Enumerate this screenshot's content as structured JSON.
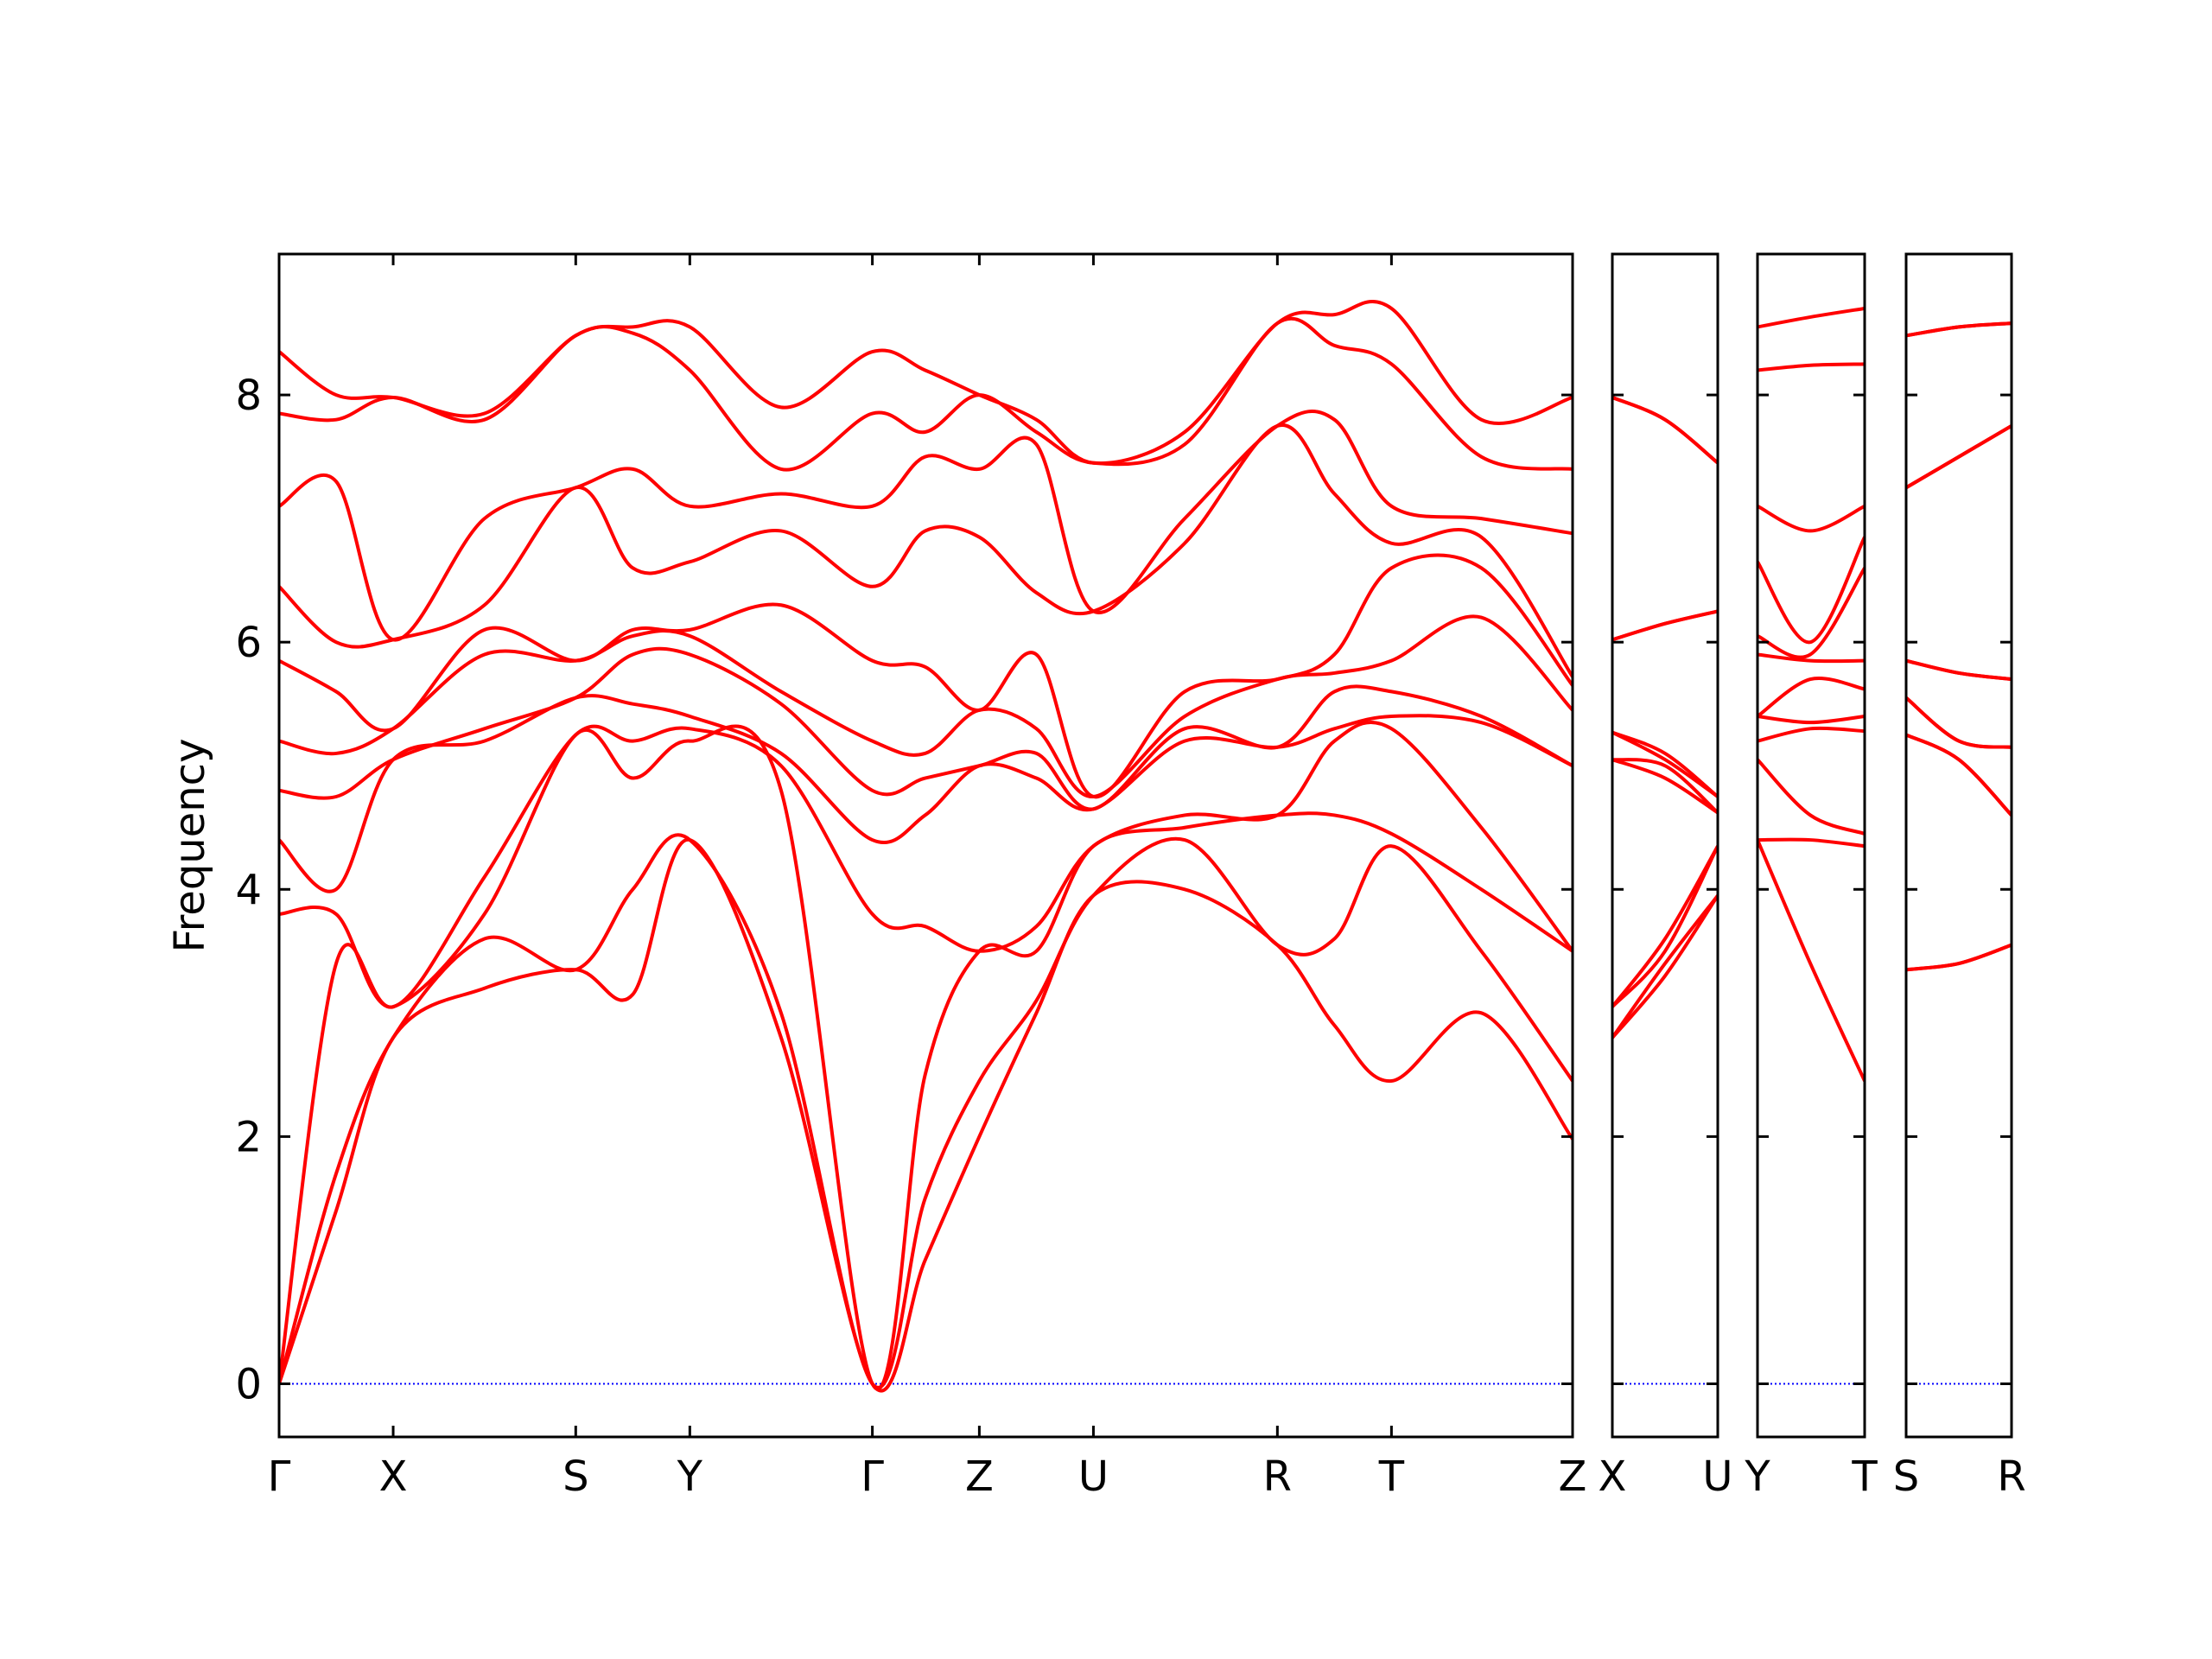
{
  "chart_data": [
    {
      "type": "line",
      "ylabel": "Frequency",
      "show_ytick_labels": true,
      "x": [
        0,
        0.4,
        0.8,
        1.44,
        2.08,
        2.48,
        2.88,
        3.52,
        4.16,
        4.53,
        4.91,
        5.31,
        5.71,
        6.35,
        7.0,
        7.4,
        7.8,
        8.43,
        9.07
      ],
      "xlim": [
        0,
        9.07
      ],
      "xticks": [
        {
          "value": 0,
          "label": "Γ"
        },
        {
          "value": 0.8,
          "label": "X"
        },
        {
          "value": 2.08,
          "label": "S"
        },
        {
          "value": 2.88,
          "label": "Y"
        },
        {
          "value": 4.16,
          "label": "Γ"
        },
        {
          "value": 4.91,
          "label": "Z"
        },
        {
          "value": 5.71,
          "label": "U"
        },
        {
          "value": 7.0,
          "label": "R"
        },
        {
          "value": 7.8,
          "label": "T"
        },
        {
          "value": 9.07,
          "label": "Z"
        }
      ],
      "ylim": [
        -0.43,
        9.14
      ],
      "yticks": [
        0,
        2,
        4,
        6,
        8
      ],
      "hline": 0,
      "hline_color": "#0000ff",
      "series": [
        {
          "color": "#ff0000",
          "values": [
            0,
            1.4,
            2.8,
            3.2,
            3.35,
            3.15,
            4.4,
            2.8,
            0,
            1.0,
            2.0,
            3.0,
            3.95,
            4.0,
            3.55,
            2.9,
            2.45,
            3.0,
            1.98
          ]
        },
        {
          "color": "#ff0000",
          "values": [
            0,
            1.7,
            2.8,
            3.6,
            3.35,
            4.0,
            4.4,
            3.0,
            0,
            1.5,
            2.45,
            3.1,
            3.95,
            4.4,
            3.55,
            3.6,
            4.35,
            3.5,
            2.45
          ]
        },
        {
          "color": "#ff0000",
          "values": [
            0,
            3.4,
            3.05,
            3.8,
            5.25,
            4.9,
            5.2,
            4.8,
            0,
            2.5,
            3.5,
            3.5,
            4.35,
            4.5,
            4.6,
            4.6,
            4.45,
            4.0,
            3.5
          ]
        },
        {
          "color": "#ff0000",
          "values": [
            3.8,
            3.8,
            3.05,
            4.1,
            5.25,
            5.2,
            5.3,
            5.0,
            3.8,
            3.7,
            3.5,
            3.7,
            4.35,
            4.6,
            4.6,
            5.2,
            5.3,
            4.5,
            3.5
          ]
        },
        {
          "color": "#ff0000",
          "values": [
            4.4,
            4.0,
            5.05,
            5.2,
            5.55,
            5.5,
            5.4,
            5.1,
            4.4,
            4.6,
            5.0,
            4.9,
            4.65,
            5.2,
            5.15,
            5.3,
            5.4,
            5.35,
            5.0
          ]
        },
        {
          "color": "#ff0000",
          "values": [
            4.8,
            4.75,
            5.05,
            5.3,
            5.55,
            5.9,
            5.9,
            5.5,
            4.8,
            4.9,
            5.0,
            5.1,
            4.65,
            5.3,
            5.15,
            5.6,
            5.6,
            5.4,
            5.0
          ]
        },
        {
          "color": "#ff0000",
          "values": [
            5.2,
            5.1,
            5.3,
            5.9,
            5.85,
            6.05,
            6.05,
            5.6,
            5.2,
            5.1,
            5.45,
            5.3,
            4.75,
            5.4,
            5.7,
            5.75,
            5.85,
            6.2,
            5.45
          ]
        },
        {
          "color": "#ff0000",
          "values": [
            5.85,
            5.6,
            5.3,
            6.1,
            5.85,
            6.1,
            6.1,
            6.3,
            5.85,
            5.8,
            5.45,
            5.9,
            4.75,
            5.6,
            5.7,
            5.9,
            6.6,
            6.6,
            5.65
          ]
        },
        {
          "color": "#ff0000",
          "values": [
            6.45,
            6.0,
            6.02,
            6.3,
            7.25,
            6.6,
            6.65,
            6.9,
            6.45,
            6.9,
            6.85,
            6.4,
            6.25,
            6.8,
            7.75,
            7.2,
            6.8,
            6.85,
            5.72
          ]
        },
        {
          "color": "#ff0000",
          "values": [
            7.1,
            7.3,
            6.02,
            7.0,
            7.25,
            7.4,
            7.1,
            7.2,
            7.1,
            7.5,
            7.4,
            7.6,
            6.25,
            7.0,
            7.75,
            7.8,
            7.1,
            7.0,
            6.88
          ]
        },
        {
          "color": "#ff0000",
          "values": [
            7.85,
            7.8,
            7.98,
            7.8,
            8.48,
            8.5,
            8.2,
            7.4,
            7.85,
            7.7,
            8.0,
            7.7,
            7.45,
            7.6,
            8.58,
            8.4,
            8.25,
            7.5,
            7.4
          ]
        },
        {
          "color": "#ff0000",
          "values": [
            8.35,
            8.0,
            7.98,
            7.85,
            8.48,
            8.55,
            8.55,
            7.9,
            8.35,
            8.2,
            8.0,
            7.8,
            7.45,
            7.7,
            8.58,
            8.65,
            8.7,
            7.8,
            7.98
          ]
        }
      ]
    },
    {
      "type": "line",
      "show_ytick_labels": false,
      "x": [
        0,
        0.37,
        0.74
      ],
      "xlim": [
        0,
        0.74
      ],
      "xticks": [
        {
          "value": 0,
          "label": "X"
        },
        {
          "value": 0.74,
          "label": "U"
        }
      ],
      "ylim": [
        -0.43,
        9.14
      ],
      "yticks": [
        0,
        2,
        4,
        6,
        8
      ],
      "hline": 0,
      "hline_color": "#0000ff",
      "series": [
        {
          "color": "#ff0000",
          "values": [
            2.8,
            3.3,
            3.95
          ]
        },
        {
          "color": "#ff0000",
          "values": [
            2.8,
            3.4,
            3.95
          ]
        },
        {
          "color": "#ff0000",
          "values": [
            3.05,
            3.5,
            4.35
          ]
        },
        {
          "color": "#ff0000",
          "values": [
            3.05,
            3.6,
            4.35
          ]
        },
        {
          "color": "#ff0000",
          "values": [
            5.05,
            4.9,
            4.62
          ]
        },
        {
          "color": "#ff0000",
          "values": [
            5.05,
            5.0,
            4.62
          ]
        },
        {
          "color": "#ff0000",
          "values": [
            5.27,
            5.05,
            4.75
          ]
        },
        {
          "color": "#ff0000",
          "values": [
            5.27,
            5.1,
            4.75
          ]
        },
        {
          "color": "#ff0000",
          "values": [
            6.02,
            6.15,
            6.25
          ]
        },
        {
          "color": "#ff0000",
          "values": [
            6.02,
            6.15,
            6.25
          ]
        },
        {
          "color": "#ff0000",
          "values": [
            7.98,
            7.8,
            7.45
          ]
        },
        {
          "color": "#ff0000",
          "values": [
            7.98,
            7.8,
            7.45
          ]
        }
      ]
    },
    {
      "type": "line",
      "show_ytick_labels": false,
      "x": [
        0,
        0.37,
        0.75
      ],
      "xlim": [
        0,
        0.75
      ],
      "xticks": [
        {
          "value": 0,
          "label": "Y"
        },
        {
          "value": 0.75,
          "label": "T"
        }
      ],
      "ylim": [
        -0.43,
        9.14
      ],
      "yticks": [
        0,
        2,
        4,
        6,
        8
      ],
      "hline": 0,
      "hline_color": "#0000ff",
      "series": [
        {
          "color": "#ff0000",
          "values": [
            4.4,
            3.4,
            2.45
          ]
        },
        {
          "color": "#ff0000",
          "values": [
            4.4,
            4.4,
            4.35
          ]
        },
        {
          "color": "#ff0000",
          "values": [
            5.05,
            4.6,
            4.45
          ]
        },
        {
          "color": "#ff0000",
          "values": [
            5.2,
            5.3,
            5.28
          ]
        },
        {
          "color": "#ff0000",
          "values": [
            5.4,
            5.35,
            5.4
          ]
        },
        {
          "color": "#ff0000",
          "values": [
            5.4,
            5.7,
            5.62
          ]
        },
        {
          "color": "#ff0000",
          "values": [
            5.9,
            5.85,
            5.85
          ]
        },
        {
          "color": "#ff0000",
          "values": [
            6.05,
            5.9,
            6.6
          ]
        },
        {
          "color": "#ff0000",
          "values": [
            6.65,
            6.0,
            6.85
          ]
        },
        {
          "color": "#ff0000",
          "values": [
            7.1,
            6.9,
            7.1
          ]
        },
        {
          "color": "#ff0000",
          "values": [
            8.2,
            8.24,
            8.25
          ]
        },
        {
          "color": "#ff0000",
          "values": [
            8.55,
            8.63,
            8.7
          ]
        }
      ]
    },
    {
      "type": "line",
      "show_ytick_labels": false,
      "x": [
        0,
        0.37,
        0.74
      ],
      "xlim": [
        0,
        0.74
      ],
      "xticks": [
        {
          "value": 0,
          "label": "S"
        },
        {
          "value": 0.74,
          "label": "R"
        }
      ],
      "ylim": [
        -0.43,
        9.14
      ],
      "yticks": [
        0,
        2,
        4,
        6,
        8
      ],
      "hline": 0,
      "hline_color": "#0000ff",
      "series": [
        {
          "color": "#ff0000",
          "values": [
            3.35,
            3.4,
            3.55
          ]
        },
        {
          "color": "#ff0000",
          "values": [
            3.35,
            3.4,
            3.55
          ]
        },
        {
          "color": "#ff0000",
          "values": [
            5.25,
            5.05,
            4.6
          ]
        },
        {
          "color": "#ff0000",
          "values": [
            5.25,
            5.05,
            4.6
          ]
        },
        {
          "color": "#ff0000",
          "values": [
            5.55,
            5.2,
            5.15
          ]
        },
        {
          "color": "#ff0000",
          "values": [
            5.55,
            5.2,
            5.15
          ]
        },
        {
          "color": "#ff0000",
          "values": [
            5.85,
            5.75,
            5.7
          ]
        },
        {
          "color": "#ff0000",
          "values": [
            5.85,
            5.75,
            5.7
          ]
        },
        {
          "color": "#ff0000",
          "values": [
            7.25,
            7.5,
            7.75
          ]
        },
        {
          "color": "#ff0000",
          "values": [
            7.25,
            7.5,
            7.75
          ]
        },
        {
          "color": "#ff0000",
          "values": [
            8.48,
            8.55,
            8.58
          ]
        },
        {
          "color": "#ff0000",
          "values": [
            8.48,
            8.55,
            8.58
          ]
        }
      ]
    }
  ]
}
